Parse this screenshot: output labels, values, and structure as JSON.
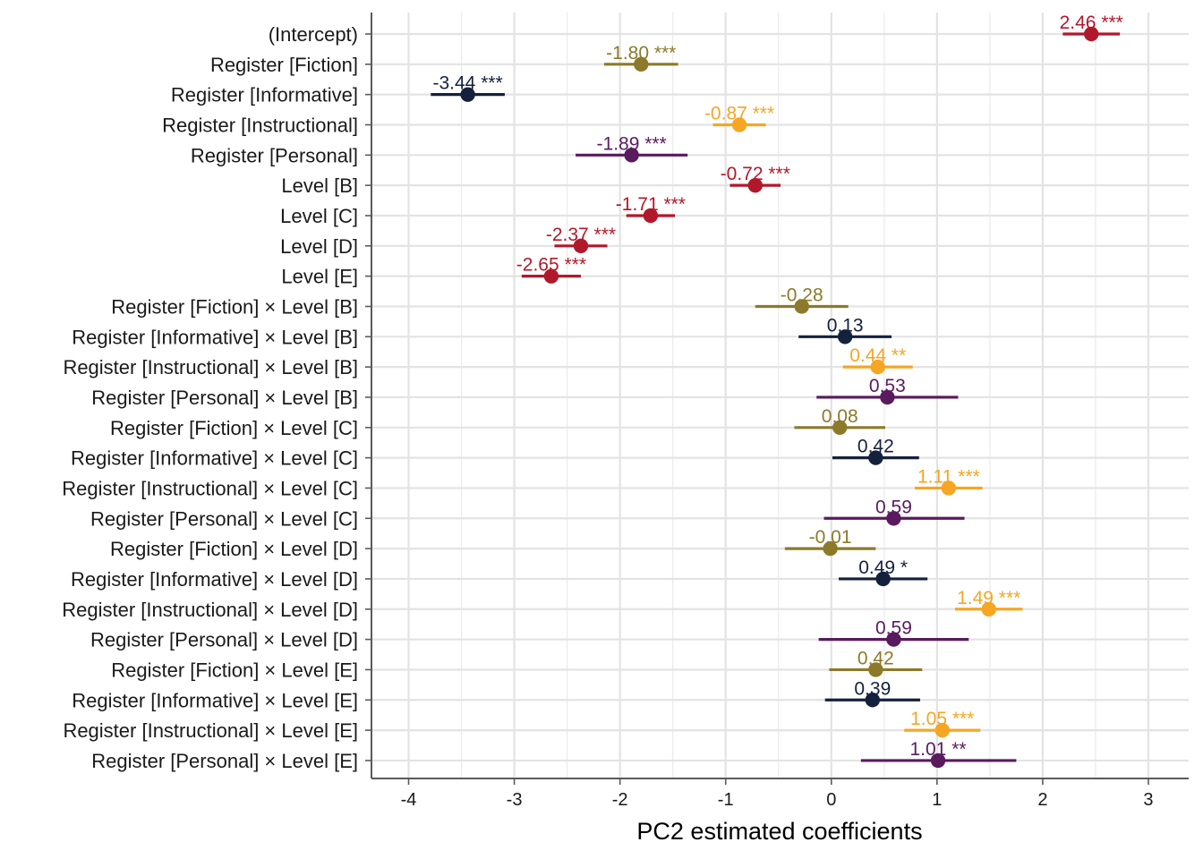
{
  "chart_data": {
    "type": "scatter",
    "subtype": "coefficient-plot",
    "xlabel": "PC2 estimated coefficients",
    "xlim": [
      -4.35,
      3.35
    ],
    "xticks": [
      -4,
      -3,
      -2,
      -1,
      0,
      1,
      2,
      3
    ],
    "xtick_labels": [
      "-4",
      "-3",
      "-2",
      "-1",
      "0",
      "1",
      "2",
      "3"
    ],
    "grid": true,
    "colors": {
      "intercept_level": "#b2182b",
      "fiction": "#8c7a2a",
      "informative": "#14213d",
      "instructional": "#f5a623",
      "personal": "#5a1a5e"
    },
    "terms": [
      {
        "label": "(Intercept)",
        "estimate": 2.46,
        "lower": 2.19,
        "upper": 2.73,
        "value_label": "2.46 ***",
        "group": "intercept_level"
      },
      {
        "label": "Register [Fiction]",
        "estimate": -1.8,
        "lower": -2.15,
        "upper": -1.45,
        "value_label": "-1.80 ***",
        "group": "fiction"
      },
      {
        "label": "Register [Informative]",
        "estimate": -3.44,
        "lower": -3.79,
        "upper": -3.09,
        "value_label": "-3.44 ***",
        "group": "informative"
      },
      {
        "label": "Register [Instructional]",
        "estimate": -0.87,
        "lower": -1.12,
        "upper": -0.62,
        "value_label": "-0.87 ***",
        "group": "instructional"
      },
      {
        "label": "Register [Personal]",
        "estimate": -1.89,
        "lower": -2.42,
        "upper": -1.36,
        "value_label": "-1.89 ***",
        "group": "personal"
      },
      {
        "label": "Level [B]",
        "estimate": -0.72,
        "lower": -0.96,
        "upper": -0.48,
        "value_label": "-0.72 ***",
        "group": "intercept_level"
      },
      {
        "label": "Level [C]",
        "estimate": -1.71,
        "lower": -1.94,
        "upper": -1.48,
        "value_label": "-1.71 ***",
        "group": "intercept_level"
      },
      {
        "label": "Level [D]",
        "estimate": -2.37,
        "lower": -2.62,
        "upper": -2.12,
        "value_label": "-2.37 ***",
        "group": "intercept_level"
      },
      {
        "label": "Level [E]",
        "estimate": -2.65,
        "lower": -2.93,
        "upper": -2.37,
        "value_label": "-2.65 ***",
        "group": "intercept_level"
      },
      {
        "label": "Register [Fiction] × Level [B]",
        "estimate": -0.28,
        "lower": -0.72,
        "upper": 0.16,
        "value_label": "-0.28",
        "group": "fiction"
      },
      {
        "label": "Register [Informative] × Level [B]",
        "estimate": 0.13,
        "lower": -0.31,
        "upper": 0.57,
        "value_label": "0.13",
        "group": "informative"
      },
      {
        "label": "Register [Instructional] × Level [B]",
        "estimate": 0.44,
        "lower": 0.11,
        "upper": 0.77,
        "value_label": "0.44 **",
        "group": "instructional"
      },
      {
        "label": "Register [Personal] × Level [B]",
        "estimate": 0.53,
        "lower": -0.14,
        "upper": 1.2,
        "value_label": "0.53",
        "group": "personal"
      },
      {
        "label": "Register [Fiction] × Level [C]",
        "estimate": 0.08,
        "lower": -0.35,
        "upper": 0.51,
        "value_label": "0.08",
        "group": "fiction"
      },
      {
        "label": "Register [Informative] × Level [C]",
        "estimate": 0.42,
        "lower": 0.01,
        "upper": 0.83,
        "value_label": "0.42",
        "group": "informative"
      },
      {
        "label": "Register [Instructional] × Level [C]",
        "estimate": 1.11,
        "lower": 0.79,
        "upper": 1.43,
        "value_label": "1.11 ***",
        "group": "instructional"
      },
      {
        "label": "Register [Personal] × Level [C]",
        "estimate": 0.59,
        "lower": -0.07,
        "upper": 1.26,
        "value_label": "0.59",
        "group": "personal"
      },
      {
        "label": "Register [Fiction] × Level [D]",
        "estimate": -0.01,
        "lower": -0.44,
        "upper": 0.42,
        "value_label": "-0.01",
        "group": "fiction"
      },
      {
        "label": "Register [Informative] × Level [D]",
        "estimate": 0.49,
        "lower": 0.07,
        "upper": 0.91,
        "value_label": "0.49 *",
        "group": "informative"
      },
      {
        "label": "Register [Instructional] × Level [D]",
        "estimate": 1.49,
        "lower": 1.17,
        "upper": 1.81,
        "value_label": "1.49 ***",
        "group": "instructional"
      },
      {
        "label": "Register [Personal] × Level [D]",
        "estimate": 0.59,
        "lower": -0.12,
        "upper": 1.3,
        "value_label": "0.59",
        "group": "personal"
      },
      {
        "label": "Register [Fiction] × Level [E]",
        "estimate": 0.42,
        "lower": -0.02,
        "upper": 0.86,
        "value_label": "0.42",
        "group": "fiction"
      },
      {
        "label": "Register [Informative] × Level [E]",
        "estimate": 0.39,
        "lower": -0.06,
        "upper": 0.84,
        "value_label": "0.39",
        "group": "informative"
      },
      {
        "label": "Register [Instructional] × Level [E]",
        "estimate": 1.05,
        "lower": 0.69,
        "upper": 1.41,
        "value_label": "1.05 ***",
        "group": "instructional"
      },
      {
        "label": "Register [Personal] × Level [E]",
        "estimate": 1.01,
        "lower": 0.28,
        "upper": 1.75,
        "value_label": "1.01 **",
        "group": "personal"
      }
    ]
  }
}
